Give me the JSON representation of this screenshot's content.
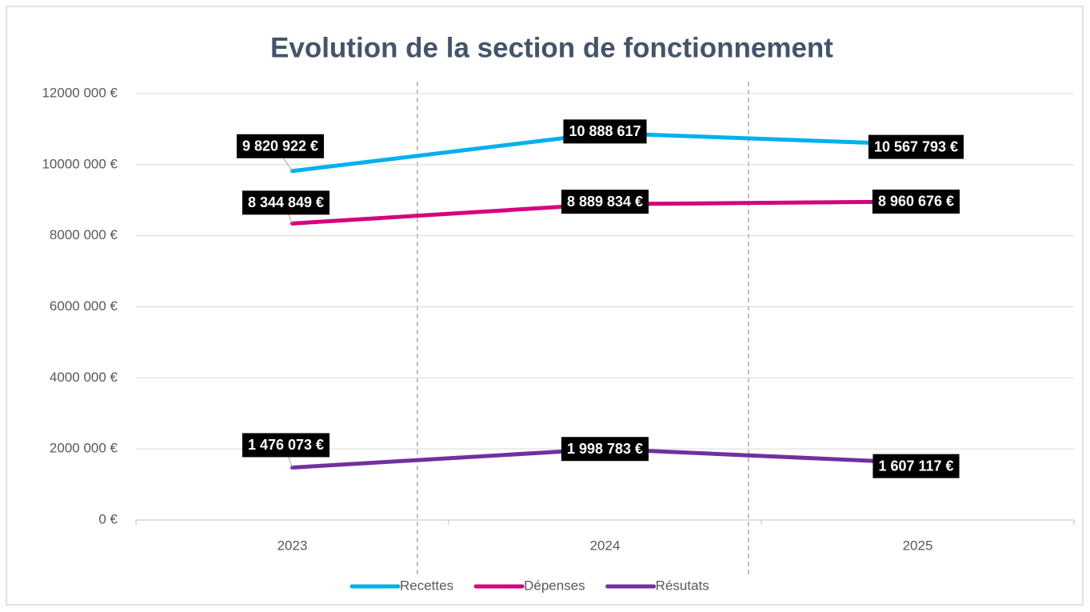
{
  "chart_data": {
    "type": "line",
    "title": "Evolution de la section de fonctionnement",
    "categories": [
      "2023",
      "2024",
      "2025"
    ],
    "series": [
      {
        "name": "Recettes",
        "color": "#00b0f0",
        "values": [
          9820922,
          10888617,
          10567793
        ],
        "value_labels": [
          "9 820 922 €",
          "10 888 617",
          "10 567 793 €"
        ]
      },
      {
        "name": "Dépenses",
        "color": "#d6007e",
        "values": [
          8344849,
          8889834,
          8960676
        ],
        "value_labels": [
          "8 344 849 €",
          "8 889 834 €",
          "8 960 676 €"
        ]
      },
      {
        "name": "Résutats",
        "color": "#7030a0",
        "values": [
          1476073,
          1998783,
          1607117
        ],
        "value_labels": [
          "1 476 073 €",
          "1 998 783 €",
          "1 607 117 €"
        ]
      }
    ],
    "ylim": [
      0,
      12000000
    ],
    "yticks": [
      {
        "value": 0,
        "label": "0 €"
      },
      {
        "value": 2000000,
        "label": "2000 000 €"
      },
      {
        "value": 4000000,
        "label": "4000 000 €"
      },
      {
        "value": 6000000,
        "label": "6000 000 €"
      },
      {
        "value": 8000000,
        "label": "8000 000 €"
      },
      {
        "value": 10000000,
        "label": "10000 000 €"
      },
      {
        "value": 12000000,
        "label": "12000 000 €"
      }
    ],
    "grid": true,
    "legend": "bottom"
  }
}
